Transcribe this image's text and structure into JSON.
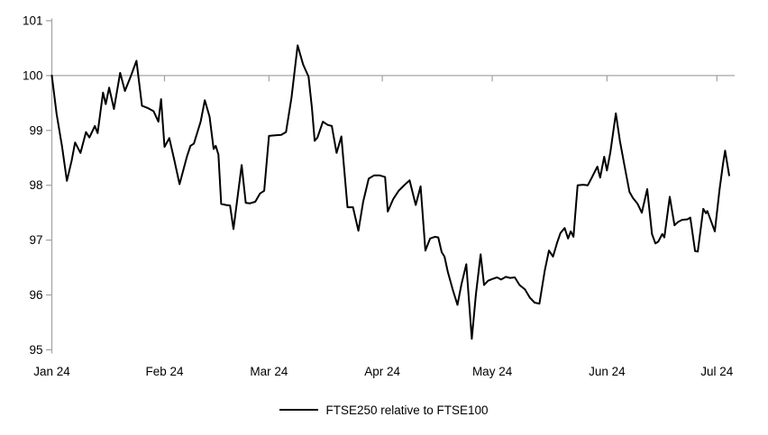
{
  "page": {
    "background": "#ffffff"
  },
  "legend": {
    "label": "FTSE250 relative to FTSE100"
  },
  "chart_data": {
    "type": "line",
    "title": "",
    "xlabel": "",
    "ylabel": "",
    "grid": "off",
    "legend_position": "bottom-center",
    "colors": {
      "series": "#000000",
      "axis": "#a6a6a6",
      "reference_line": "#a6a6a6",
      "text": "#000000"
    },
    "y_axis": {
      "min": 95,
      "max": 101,
      "step": 1,
      "tick_labels": [
        "101",
        "100",
        "99",
        "98",
        "97",
        "96",
        "95"
      ]
    },
    "x_axis": {
      "ticks": [
        {
          "label": "Jan 24",
          "pos": 0.0
        },
        {
          "label": "Feb 24",
          "pos": 0.165
        },
        {
          "label": "Mar 24",
          "pos": 0.318
        },
        {
          "label": "Apr 24",
          "pos": 0.484
        },
        {
          "label": "May 24",
          "pos": 0.645
        },
        {
          "label": "Jun 24",
          "pos": 0.813
        },
        {
          "label": "Jul 24",
          "pos": 0.974
        }
      ]
    },
    "reference_line": {
      "value": 100
    },
    "series": [
      {
        "name": "FTSE250 relative to FTSE100",
        "color": "#000000",
        "points": [
          [
            0.0,
            100.0
          ],
          [
            0.007,
            99.3
          ],
          [
            0.015,
            98.7
          ],
          [
            0.022,
            98.08
          ],
          [
            0.029,
            98.45
          ],
          [
            0.034,
            98.78
          ],
          [
            0.042,
            98.59
          ],
          [
            0.05,
            98.97
          ],
          [
            0.055,
            98.87
          ],
          [
            0.063,
            99.08
          ],
          [
            0.067,
            98.95
          ],
          [
            0.075,
            99.69
          ],
          [
            0.079,
            99.48
          ],
          [
            0.084,
            99.78
          ],
          [
            0.091,
            99.39
          ],
          [
            0.1,
            100.05
          ],
          [
            0.107,
            99.72
          ],
          [
            0.116,
            100.0
          ],
          [
            0.124,
            100.27
          ],
          [
            0.132,
            99.45
          ],
          [
            0.14,
            99.41
          ],
          [
            0.149,
            99.35
          ],
          [
            0.156,
            99.16
          ],
          [
            0.16,
            99.57
          ],
          [
            0.165,
            98.7
          ],
          [
            0.172,
            98.86
          ],
          [
            0.179,
            98.48
          ],
          [
            0.187,
            98.02
          ],
          [
            0.198,
            98.53
          ],
          [
            0.203,
            98.72
          ],
          [
            0.208,
            98.76
          ],
          [
            0.218,
            99.16
          ],
          [
            0.224,
            99.55
          ],
          [
            0.231,
            99.25
          ],
          [
            0.237,
            98.66
          ],
          [
            0.24,
            98.72
          ],
          [
            0.244,
            98.56
          ],
          [
            0.248,
            97.66
          ],
          [
            0.255,
            97.64
          ],
          [
            0.261,
            97.63
          ],
          [
            0.266,
            97.2
          ],
          [
            0.278,
            98.37
          ],
          [
            0.284,
            97.68
          ],
          [
            0.29,
            97.67
          ],
          [
            0.298,
            97.7
          ],
          [
            0.305,
            97.85
          ],
          [
            0.311,
            97.9
          ],
          [
            0.318,
            98.9
          ],
          [
            0.327,
            98.91
          ],
          [
            0.336,
            98.92
          ],
          [
            0.343,
            98.97
          ],
          [
            0.351,
            99.6
          ],
          [
            0.36,
            100.55
          ],
          [
            0.368,
            100.2
          ],
          [
            0.376,
            99.98
          ],
          [
            0.381,
            99.4
          ],
          [
            0.385,
            98.81
          ],
          [
            0.389,
            98.87
          ],
          [
            0.397,
            99.16
          ],
          [
            0.404,
            99.1
          ],
          [
            0.41,
            99.08
          ],
          [
            0.417,
            98.59
          ],
          [
            0.424,
            98.89
          ],
          [
            0.433,
            97.6
          ],
          [
            0.441,
            97.6
          ],
          [
            0.449,
            97.17
          ],
          [
            0.456,
            97.7
          ],
          [
            0.464,
            98.12
          ],
          [
            0.472,
            98.18
          ],
          [
            0.48,
            98.18
          ],
          [
            0.488,
            98.15
          ],
          [
            0.492,
            97.52
          ],
          [
            0.5,
            97.75
          ],
          [
            0.508,
            97.9
          ],
          [
            0.516,
            98.0
          ],
          [
            0.524,
            98.09
          ],
          [
            0.533,
            97.64
          ],
          [
            0.54,
            97.98
          ],
          [
            0.547,
            96.81
          ],
          [
            0.554,
            97.03
          ],
          [
            0.561,
            97.06
          ],
          [
            0.566,
            97.05
          ],
          [
            0.571,
            96.78
          ],
          [
            0.575,
            96.7
          ],
          [
            0.58,
            96.42
          ],
          [
            0.587,
            96.1
          ],
          [
            0.594,
            95.82
          ],
          [
            0.6,
            96.2
          ],
          [
            0.607,
            96.56
          ],
          [
            0.615,
            95.2
          ],
          [
            0.621,
            96.0
          ],
          [
            0.628,
            96.74
          ],
          [
            0.633,
            96.18
          ],
          [
            0.639,
            96.26
          ],
          [
            0.645,
            96.29
          ],
          [
            0.652,
            96.32
          ],
          [
            0.658,
            96.28
          ],
          [
            0.665,
            96.33
          ],
          [
            0.671,
            96.31
          ],
          [
            0.678,
            96.32
          ],
          [
            0.685,
            96.18
          ],
          [
            0.693,
            96.1
          ],
          [
            0.7,
            95.95
          ],
          [
            0.707,
            95.86
          ],
          [
            0.714,
            95.84
          ],
          [
            0.722,
            96.45
          ],
          [
            0.728,
            96.81
          ],
          [
            0.734,
            96.7
          ],
          [
            0.74,
            96.95
          ],
          [
            0.745,
            97.13
          ],
          [
            0.751,
            97.22
          ],
          [
            0.756,
            97.03
          ],
          [
            0.76,
            97.16
          ],
          [
            0.764,
            97.06
          ],
          [
            0.77,
            98.0
          ],
          [
            0.778,
            98.01
          ],
          [
            0.785,
            98.0
          ],
          [
            0.79,
            98.12
          ],
          [
            0.799,
            98.34
          ],
          [
            0.803,
            98.14
          ],
          [
            0.809,
            98.52
          ],
          [
            0.813,
            98.27
          ],
          [
            0.818,
            98.6
          ],
          [
            0.826,
            99.31
          ],
          [
            0.832,
            98.81
          ],
          [
            0.839,
            98.34
          ],
          [
            0.846,
            97.88
          ],
          [
            0.851,
            97.77
          ],
          [
            0.858,
            97.66
          ],
          [
            0.864,
            97.5
          ],
          [
            0.872,
            97.93
          ],
          [
            0.879,
            97.11
          ],
          [
            0.884,
            96.94
          ],
          [
            0.888,
            96.97
          ],
          [
            0.894,
            97.11
          ],
          [
            0.897,
            97.05
          ],
          [
            0.905,
            97.79
          ],
          [
            0.912,
            97.27
          ],
          [
            0.917,
            97.33
          ],
          [
            0.923,
            97.37
          ],
          [
            0.931,
            97.38
          ],
          [
            0.935,
            97.41
          ],
          [
            0.942,
            96.8
          ],
          [
            0.946,
            96.79
          ],
          [
            0.954,
            97.57
          ],
          [
            0.958,
            97.49
          ],
          [
            0.96,
            97.53
          ],
          [
            0.971,
            97.16
          ],
          [
            0.978,
            97.93
          ],
          [
            0.983,
            98.39
          ],
          [
            0.986,
            98.63
          ],
          [
            0.992,
            98.18
          ]
        ]
      }
    ]
  }
}
